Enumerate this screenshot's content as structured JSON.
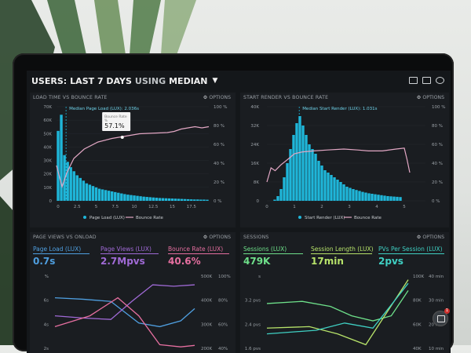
{
  "header": {
    "users_prefix": "USERS:",
    "range": "LAST 7 DAYS",
    "using": "USING",
    "statistic": "MEDIAN"
  },
  "panel_load": {
    "title": "LOAD TIME VS BOUNCE RATE",
    "options": "OPTIONS",
    "y_left": [
      "70K",
      "60K",
      "50K",
      "40K",
      "30K",
      "20K",
      "10K",
      "0"
    ],
    "y_right": [
      "100 %",
      "80 %",
      "60 %",
      "40 %",
      "20 %",
      "0 %"
    ],
    "x_ticks": [
      "0",
      "2.5",
      "5",
      "7.5",
      "10",
      "12.5",
      "15",
      "17.5"
    ],
    "median_label": "Median Page Load (LUX): 2.036s",
    "tooltip_title": "Bounce Rate",
    "tooltip_sub": "%",
    "tooltip_value": "57.1%",
    "legend_1": "Page Load (LUX)",
    "legend_2": "Bounce Rate"
  },
  "panel_start": {
    "title": "START RENDER VS BOUNCE RATE",
    "options": "OPTIONS",
    "y_left": [
      "40K",
      "32K",
      "24K",
      "16K",
      "8K",
      "0"
    ],
    "y_right": [
      "100 %",
      "80 %",
      "60 %",
      "40 %",
      "20 %",
      "0 %"
    ],
    "x_ticks": [
      "0",
      "1",
      "2",
      "3",
      "4",
      "5"
    ],
    "median_label": "Median Start Render (LUX): 1.031s",
    "legend_1": "Start Render (LUX)",
    "legend_2": "Bounce Rate"
  },
  "panel_views": {
    "title": "PAGE VIEWS VS ONLOAD",
    "options": "OPTIONS",
    "m1_label": "Page Load (LUX)",
    "m1_value": "0.7s",
    "m2_label": "Page Views (LUX)",
    "m2_value": "2.7Mpvs",
    "m3_label": "Bounce Rate (LUX)",
    "m3_value": "40.6%",
    "y_left": [
      "%",
      "6s",
      "4s",
      "2s"
    ],
    "y_right_a": [
      "500K",
      "400K",
      "300K",
      "200K"
    ],
    "y_right_b": [
      "100%",
      "80%",
      "60%",
      "40%"
    ]
  },
  "panel_sessions": {
    "title": "SESSIONS",
    "options": "OPTIONS",
    "m1_label": "Sessions (LUX)",
    "m1_value": "479K",
    "m2_label": "Session Length (LUX)",
    "m2_value": "17min",
    "m3_label": "PVs Per Session (LUX)",
    "m3_value": "2pvs",
    "y_left": [
      "s",
      "3.2 pvs",
      "2.4 pvs",
      "1.6 pvs"
    ],
    "y_right_a": [
      "100K",
      "80K",
      "60K",
      "40K"
    ],
    "y_right_b": [
      "40 min",
      "30 min",
      "20 min",
      "10 min"
    ]
  },
  "colors": {
    "bar": "#1fb6d9",
    "bounce": "#e2a7c4",
    "purple": "#a06ad6",
    "pink": "#e66fa0",
    "blue": "#4f9fe0",
    "green": "#6ee08a",
    "teal": "#3fd0c3"
  },
  "icons": [
    "monitor-icon",
    "image-icon",
    "help-icon",
    "gear-icon",
    "chat-icon"
  ]
}
